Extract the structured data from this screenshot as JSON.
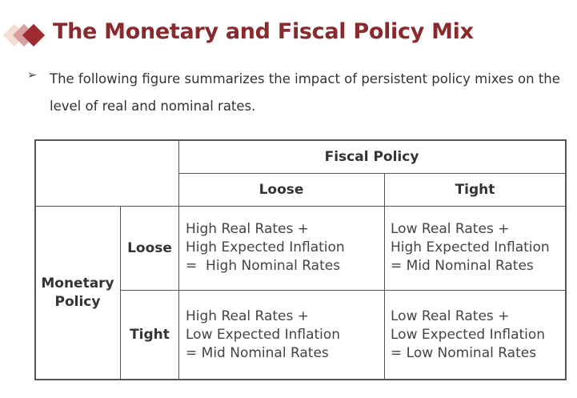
{
  "title": "The Monetary and Fiscal Policy Mix",
  "bullet_text": "The following figure summarizes the impact of persistent policy mixes on the level of real and nominal rates.",
  "colors": {
    "accent": "#8b2a2e"
  },
  "table": {
    "fiscal_header": "Fiscal Policy",
    "fiscal_cols": [
      "Loose",
      "Tight"
    ],
    "monetary_header": "Monetary\nPolicy",
    "monetary_rows": [
      "Loose",
      "Tight"
    ],
    "cells": [
      [
        "High Real Rates +\nHigh Expected Inflation\n=  High Nominal Rates",
        "Low Real Rates +\nHigh Expected Inflation\n= Mid Nominal Rates"
      ],
      [
        "High Real Rates +\nLow Expected Inflation\n= Mid Nominal Rates",
        "Low Real Rates +\nLow Expected Inflation\n= Low Nominal Rates"
      ]
    ]
  }
}
